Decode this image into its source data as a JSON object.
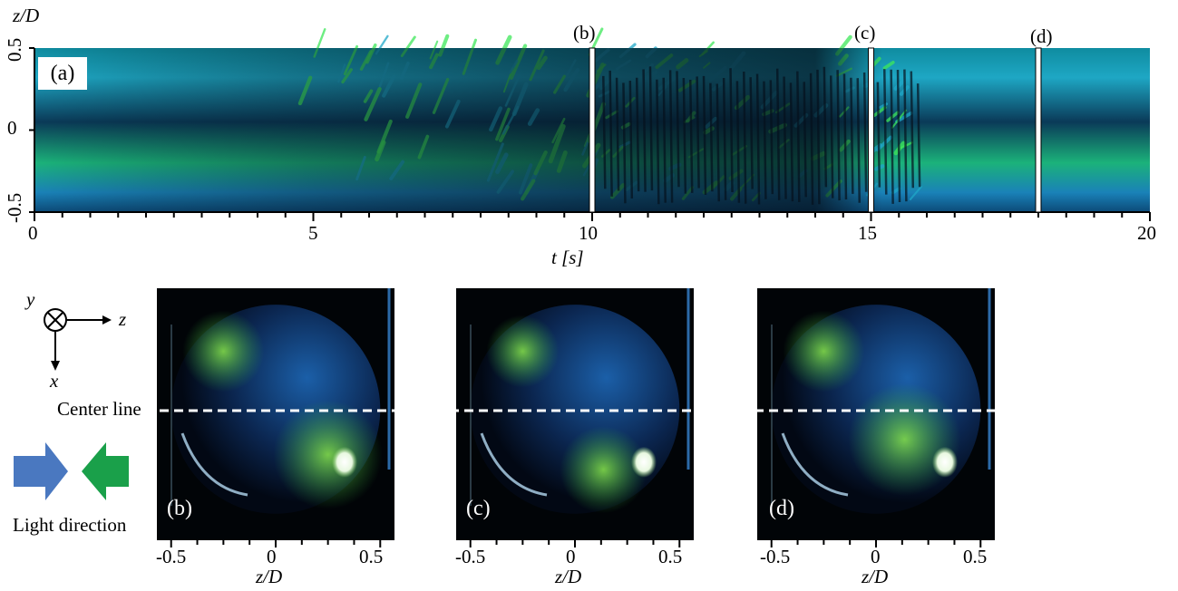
{
  "colors": {
    "blue_light": "#4a78c0",
    "green_light": "#1aa04a",
    "cyan_flow": "#1fa8c8",
    "dark_flow": "#06121e",
    "green_flow": "#3ee85a"
  },
  "panel_a": {
    "label": "(a)",
    "y_axis_label": "z/D",
    "y_ticks": [
      "0.5",
      "0",
      "-0.5"
    ],
    "x_axis_label": "t [s]",
    "x_ticks": [
      "0",
      "5",
      "10",
      "15",
      "20"
    ],
    "x_range": [
      0,
      20
    ],
    "y_range": [
      -0.5,
      0.5
    ],
    "markers": [
      {
        "label": "(b)",
        "t": 10
      },
      {
        "label": "(c)",
        "t": 15
      },
      {
        "label": "(d)",
        "t": 18
      }
    ]
  },
  "orientation": {
    "y": "y",
    "z": "z",
    "x": "x",
    "center_line": "Center line"
  },
  "light": {
    "label": "Light direction"
  },
  "snapshots": [
    {
      "label": "(b)",
      "ticks": [
        "-0.5",
        "0",
        "0.5"
      ],
      "axis_label": "z/D"
    },
    {
      "label": "(c)",
      "ticks": [
        "-0.5",
        "0",
        "0.5"
      ],
      "axis_label": "z/D"
    },
    {
      "label": "(d)",
      "ticks": [
        "-0.5",
        "0",
        "0.5"
      ],
      "axis_label": "z/D"
    }
  ]
}
